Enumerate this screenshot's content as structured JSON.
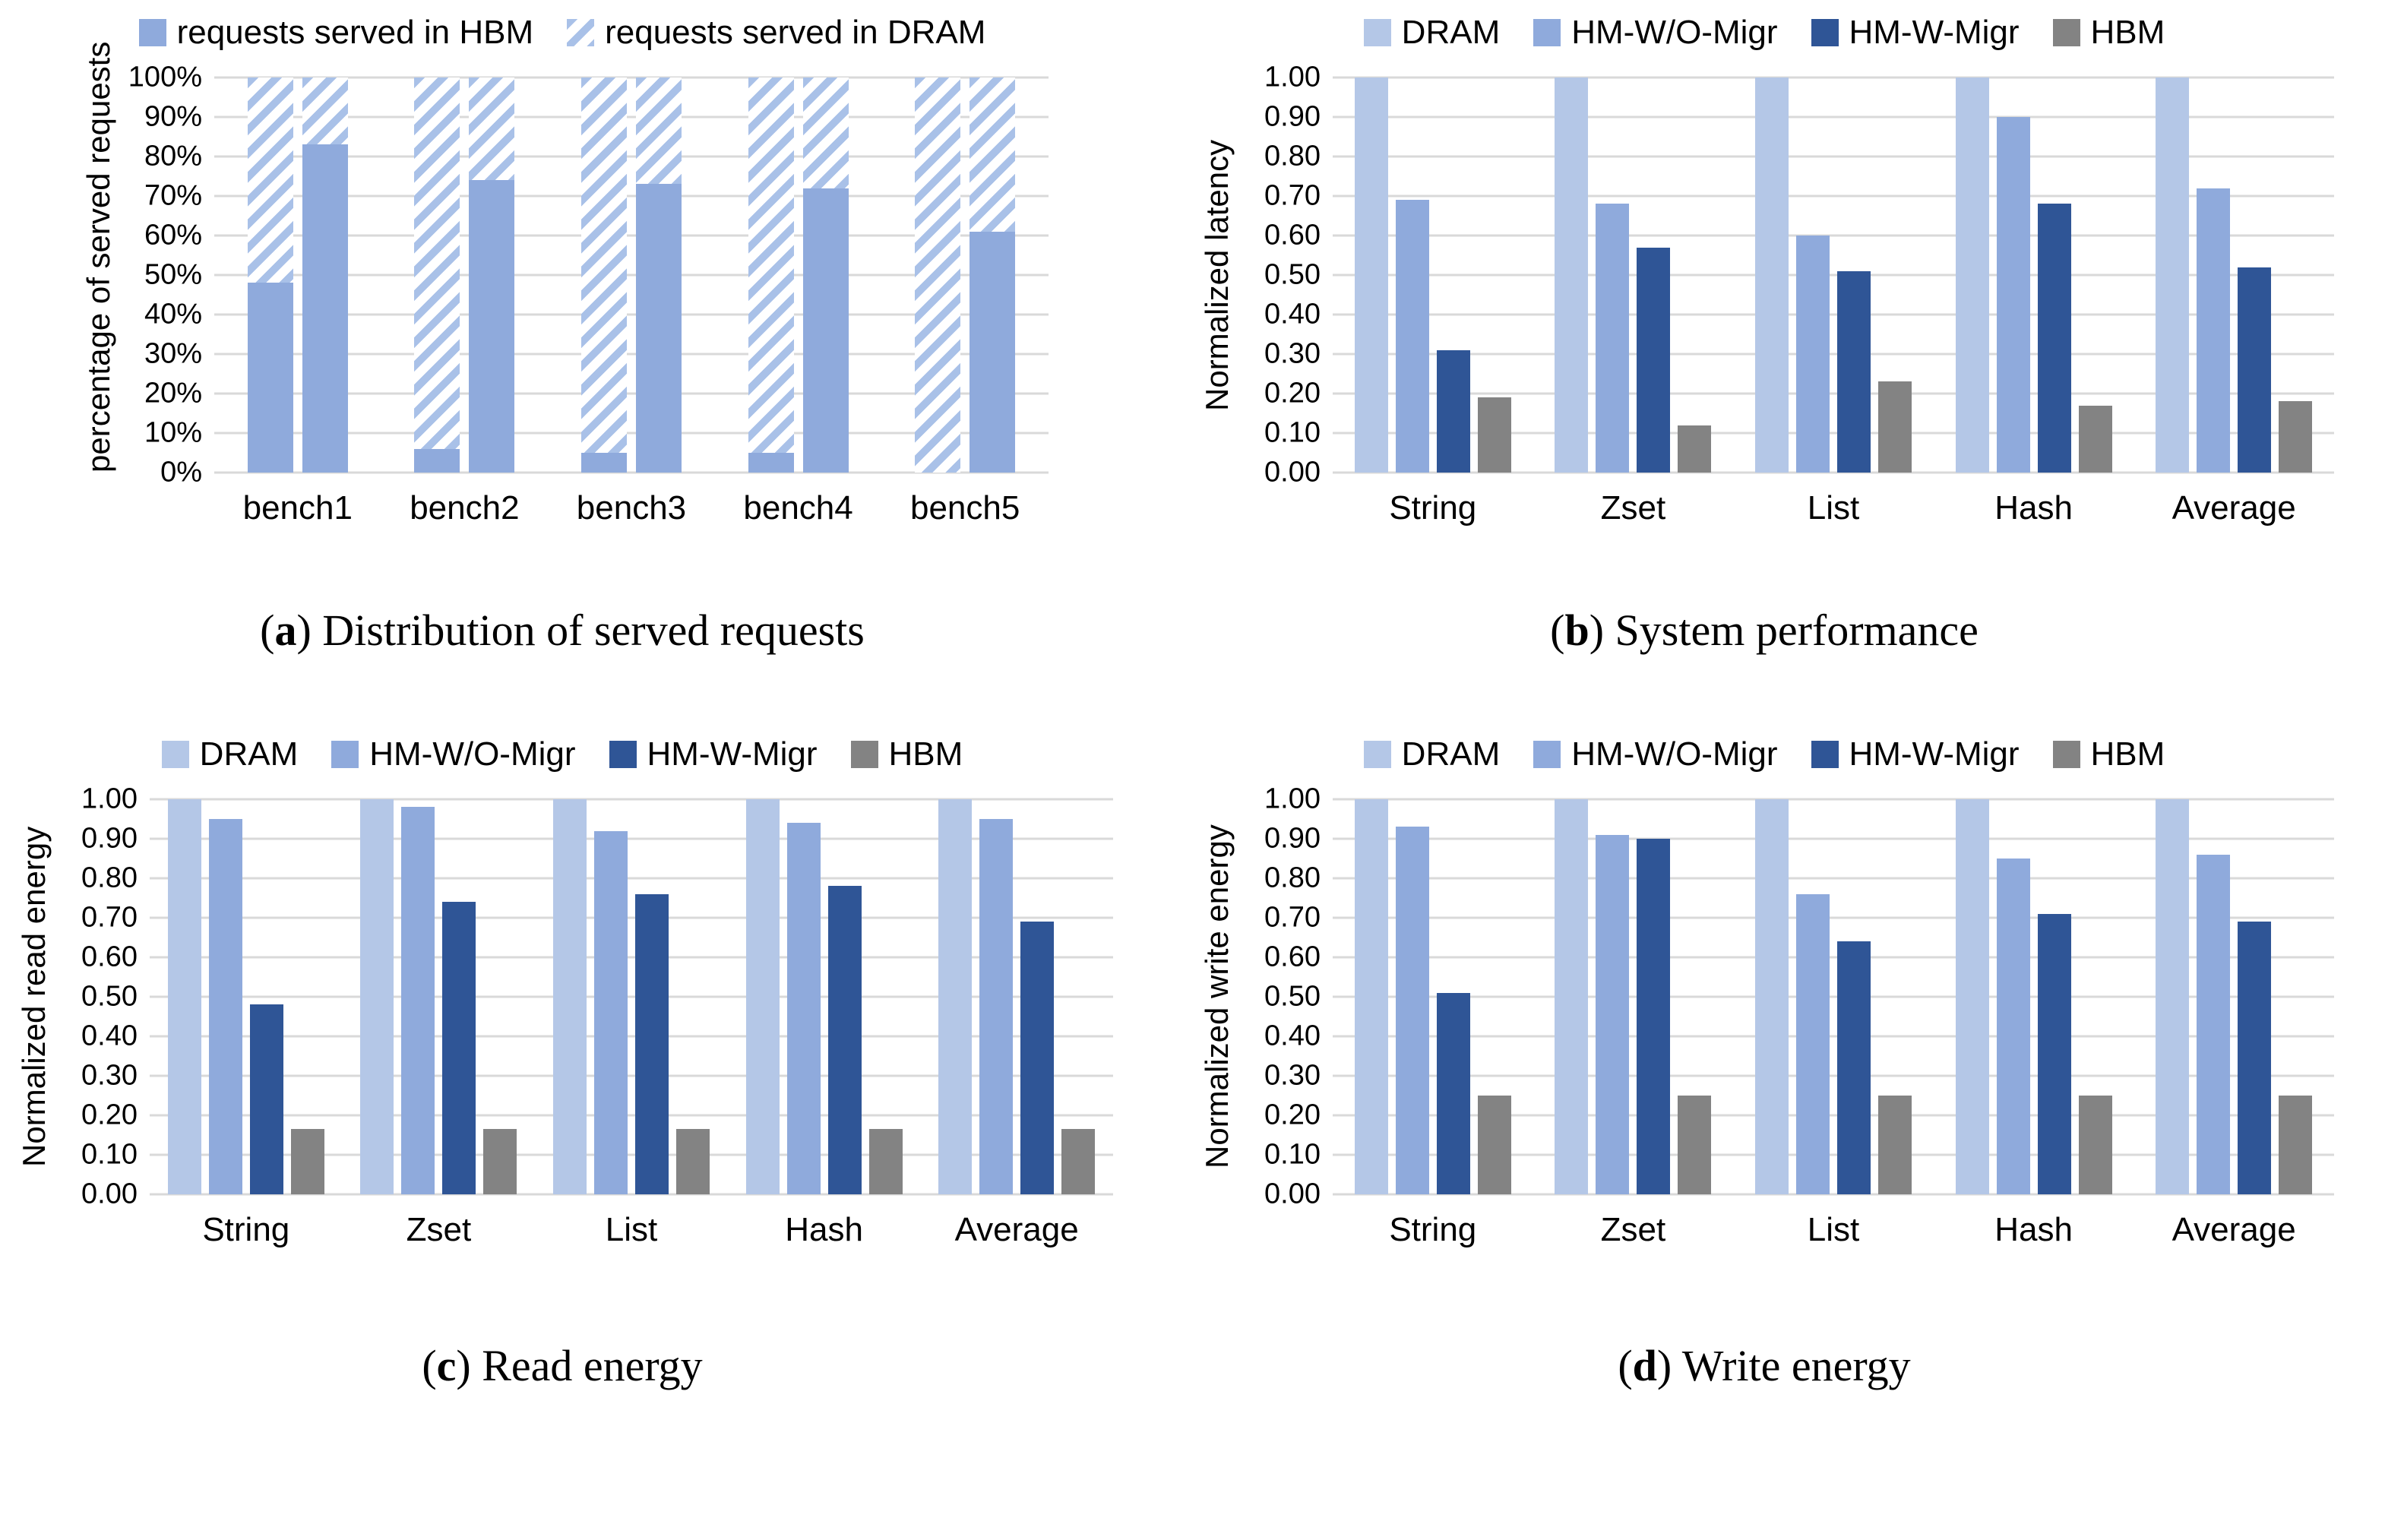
{
  "colors": {
    "dram": "#B4C7E7",
    "hm_wo": "#8FAADC",
    "hm_w": "#2F5596",
    "hbm": "#838383",
    "hatch_stripe": "#A9C1E8",
    "grid": "#D9D9D9"
  },
  "panels": [
    {
      "caption_letter": "a",
      "caption_text": "Distribution of served requests",
      "legend": [
        {
          "label": "requests served in HBM",
          "style": "solid",
          "color": "hm_wo"
        },
        {
          "label": "requests served in DRAM",
          "style": "hatched"
        }
      ],
      "chart_data": {
        "type": "stacked-bar",
        "title": "Distribution of served requests",
        "ylabel": "percentage of served requests",
        "categories": [
          "bench1",
          "bench2",
          "bench3",
          "bench4",
          "bench5"
        ],
        "yticks": [
          "100%",
          "90%",
          "80%",
          "70%",
          "60%",
          "50%",
          "40%",
          "30%",
          "20%",
          "10%",
          "0%"
        ],
        "ylim": [
          0,
          100
        ],
        "bars_per_category": 2,
        "grid": true,
        "legend_position": "top",
        "series": [
          {
            "name": "requests served in HBM",
            "color": "hm_wo",
            "values": [
              [
                48,
                83
              ],
              [
                6,
                74
              ],
              [
                5,
                73
              ],
              [
                5,
                72
              ],
              [
                0,
                61
              ]
            ]
          },
          {
            "name": "requests served in DRAM",
            "color": "hatch_stripe",
            "values": [
              [
                52,
                17
              ],
              [
                94,
                26
              ],
              [
                95,
                27
              ],
              [
                95,
                28
              ],
              [
                100,
                39
              ]
            ]
          }
        ]
      }
    },
    {
      "caption_letter": "b",
      "caption_text": "System performance",
      "legend": [
        {
          "label": "DRAM",
          "style": "solid",
          "color": "dram"
        },
        {
          "label": "HM-W/O-Migr",
          "style": "solid",
          "color": "hm_wo"
        },
        {
          "label": "HM-W-Migr",
          "style": "solid",
          "color": "hm_w"
        },
        {
          "label": "HBM",
          "style": "solid",
          "color": "hbm"
        }
      ],
      "chart_data": {
        "type": "bar",
        "title": "System performance",
        "ylabel": "Normalized latency",
        "categories": [
          "String",
          "Zset",
          "List",
          "Hash",
          "Average"
        ],
        "yticks": [
          "1.00",
          "0.90",
          "0.80",
          "0.70",
          "0.60",
          "0.50",
          "0.40",
          "0.30",
          "0.20",
          "0.10",
          "0.00"
        ],
        "ylim": [
          0,
          1
        ],
        "grid": true,
        "legend_position": "top",
        "series": [
          {
            "name": "DRAM",
            "color": "dram",
            "values": [
              1.0,
              1.0,
              1.0,
              1.0,
              1.0
            ]
          },
          {
            "name": "HM-W/O-Migr",
            "color": "hm_wo",
            "values": [
              0.69,
              0.68,
              0.6,
              0.9,
              0.72
            ]
          },
          {
            "name": "HM-W-Migr",
            "color": "hm_w",
            "values": [
              0.31,
              0.57,
              0.51,
              0.68,
              0.52
            ]
          },
          {
            "name": "HBM",
            "color": "hbm",
            "values": [
              0.19,
              0.12,
              0.23,
              0.17,
              0.18
            ]
          }
        ]
      }
    },
    {
      "caption_letter": "c",
      "caption_text": "Read energy",
      "legend": [
        {
          "label": "DRAM",
          "style": "solid",
          "color": "dram"
        },
        {
          "label": "HM-W/O-Migr",
          "style": "solid",
          "color": "hm_wo"
        },
        {
          "label": "HM-W-Migr",
          "style": "solid",
          "color": "hm_w"
        },
        {
          "label": "HBM",
          "style": "solid",
          "color": "hbm"
        }
      ],
      "chart_data": {
        "type": "bar",
        "title": "Read energy",
        "ylabel": "Normalized read energy",
        "categories": [
          "String",
          "Zset",
          "List",
          "Hash",
          "Average"
        ],
        "yticks": [
          "1.00",
          "0.90",
          "0.80",
          "0.70",
          "0.60",
          "0.50",
          "0.40",
          "0.30",
          "0.20",
          "0.10",
          "0.00"
        ],
        "ylim": [
          0,
          1
        ],
        "grid": true,
        "legend_position": "top",
        "series": [
          {
            "name": "DRAM",
            "color": "dram",
            "values": [
              1.0,
              1.0,
              1.0,
              1.0,
              1.0
            ]
          },
          {
            "name": "HM-W/O-Migr",
            "color": "hm_wo",
            "values": [
              0.95,
              0.98,
              0.92,
              0.94,
              0.95
            ]
          },
          {
            "name": "HM-W-Migr",
            "color": "hm_w",
            "values": [
              0.48,
              0.74,
              0.76,
              0.78,
              0.69
            ]
          },
          {
            "name": "HBM",
            "color": "hbm",
            "values": [
              0.165,
              0.165,
              0.165,
              0.165,
              0.165
            ]
          }
        ]
      }
    },
    {
      "caption_letter": "d",
      "caption_text": "Write energy",
      "legend": [
        {
          "label": "DRAM",
          "style": "solid",
          "color": "dram"
        },
        {
          "label": "HM-W/O-Migr",
          "style": "solid",
          "color": "hm_wo"
        },
        {
          "label": "HM-W-Migr",
          "style": "solid",
          "color": "hm_w"
        },
        {
          "label": "HBM",
          "style": "solid",
          "color": "hbm"
        }
      ],
      "chart_data": {
        "type": "bar",
        "title": "Write energy",
        "ylabel": "Normalized write energy",
        "categories": [
          "String",
          "Zset",
          "List",
          "Hash",
          "Average"
        ],
        "yticks": [
          "1.00",
          "0.90",
          "0.80",
          "0.70",
          "0.60",
          "0.50",
          "0.40",
          "0.30",
          "0.20",
          "0.10",
          "0.00"
        ],
        "ylim": [
          0,
          1
        ],
        "grid": true,
        "legend_position": "top",
        "series": [
          {
            "name": "DRAM",
            "color": "dram",
            "values": [
              1.0,
              1.0,
              1.0,
              1.0,
              1.0
            ]
          },
          {
            "name": "HM-W/O-Migr",
            "color": "hm_wo",
            "values": [
              0.93,
              0.91,
              0.76,
              0.85,
              0.86
            ]
          },
          {
            "name": "HM-W-Migr",
            "color": "hm_w",
            "values": [
              0.51,
              0.9,
              0.64,
              0.71,
              0.69
            ]
          },
          {
            "name": "HBM",
            "color": "hbm",
            "values": [
              0.25,
              0.25,
              0.25,
              0.25,
              0.25
            ]
          }
        ]
      }
    }
  ]
}
